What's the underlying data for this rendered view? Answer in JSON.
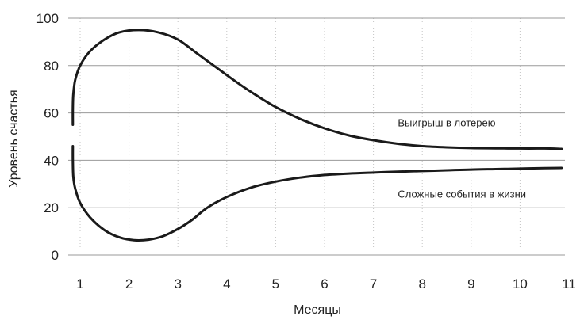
{
  "chart_data": {
    "type": "line",
    "title": "",
    "xlabel": "Месяцы",
    "ylabel": "Уровень счастья",
    "xlim": [
      0.85,
      11.1
    ],
    "ylim": [
      0,
      100
    ],
    "x_ticks": [
      1,
      2,
      3,
      4,
      5,
      6,
      7,
      8,
      9,
      10,
      11
    ],
    "y_ticks": [
      0,
      20,
      40,
      60,
      80,
      100
    ],
    "grid": {
      "horizontal": true,
      "vertical": "dotted"
    },
    "series": [
      {
        "name": "Выигрыш в лотерею",
        "label_at": [
          7.5,
          56
        ],
        "points": [
          [
            0.85,
            55
          ],
          [
            0.85,
            62
          ],
          [
            0.86,
            68
          ],
          [
            0.9,
            74
          ],
          [
            1.0,
            80
          ],
          [
            1.2,
            86
          ],
          [
            1.5,
            91
          ],
          [
            1.8,
            94
          ],
          [
            2.2,
            95
          ],
          [
            2.6,
            94
          ],
          [
            3.0,
            91
          ],
          [
            3.4,
            85
          ],
          [
            3.8,
            79
          ],
          [
            4.2,
            73
          ],
          [
            4.6,
            67.5
          ],
          [
            5.0,
            62.5
          ],
          [
            5.5,
            57.5
          ],
          [
            6.0,
            53.5
          ],
          [
            6.5,
            50.5
          ],
          [
            7.0,
            48.5
          ],
          [
            7.5,
            47
          ],
          [
            8.0,
            46
          ],
          [
            8.5,
            45.5
          ],
          [
            9.0,
            45.2
          ],
          [
            9.5,
            45.1
          ],
          [
            10.0,
            45
          ],
          [
            10.5,
            45
          ],
          [
            10.85,
            44.8
          ]
        ]
      },
      {
        "name": "Сложные события в жизни",
        "label_at": [
          7.5,
          26
        ],
        "points": [
          [
            0.85,
            46
          ],
          [
            0.85,
            40
          ],
          [
            0.86,
            33
          ],
          [
            0.9,
            28
          ],
          [
            1.0,
            22
          ],
          [
            1.2,
            16
          ],
          [
            1.5,
            10.5
          ],
          [
            1.8,
            7.5
          ],
          [
            2.1,
            6.3
          ],
          [
            2.4,
            6.5
          ],
          [
            2.7,
            8
          ],
          [
            3.0,
            11
          ],
          [
            3.3,
            15
          ],
          [
            3.6,
            20
          ],
          [
            4.0,
            24.5
          ],
          [
            4.5,
            28.5
          ],
          [
            5.0,
            31
          ],
          [
            5.5,
            32.7
          ],
          [
            6.0,
            33.8
          ],
          [
            6.5,
            34.4
          ],
          [
            7.0,
            34.8
          ],
          [
            7.5,
            35.2
          ],
          [
            8.0,
            35.5
          ],
          [
            8.5,
            35.8
          ],
          [
            9.0,
            36.1
          ],
          [
            9.5,
            36.3
          ],
          [
            10.0,
            36.5
          ],
          [
            10.5,
            36.7
          ],
          [
            10.85,
            36.8
          ]
        ]
      }
    ]
  }
}
